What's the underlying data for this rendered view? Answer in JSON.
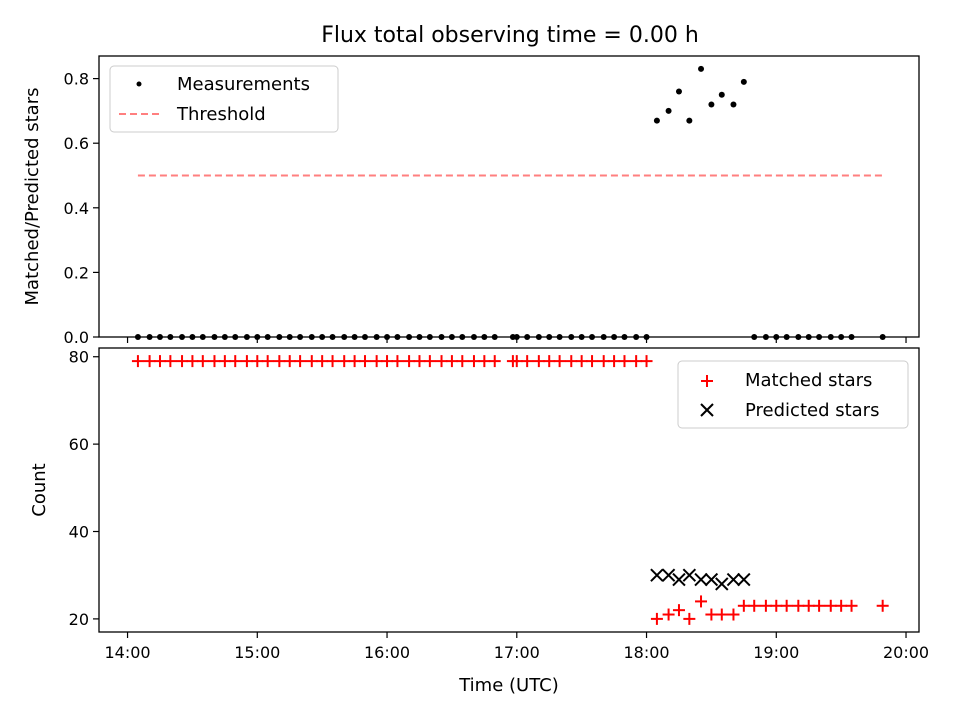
{
  "title": "Flux total observing time = 0.00 h",
  "chart_data": [
    {
      "type": "scatter",
      "ylabel": "Matched/Predicted stars",
      "xlabel": "",
      "xlim": [
        13.78,
        20.1
      ],
      "ylim": [
        0,
        0.87
      ],
      "yticks": [
        0.0,
        0.2,
        0.4,
        0.6,
        0.8
      ],
      "ytick_labels": [
        "0.0",
        "0.2",
        "0.4",
        "0.6",
        "0.8"
      ],
      "grid": false,
      "legend_position": "upper-left",
      "series": [
        {
          "name": "Measurements",
          "kind": "points",
          "color": "#000000",
          "x": [
            14.08,
            14.17,
            14.25,
            14.33,
            14.42,
            14.5,
            14.58,
            14.67,
            14.75,
            14.83,
            14.92,
            15.0,
            15.08,
            15.17,
            15.25,
            15.33,
            15.42,
            15.5,
            15.58,
            15.67,
            15.75,
            15.83,
            15.92,
            16.0,
            16.08,
            16.17,
            16.25,
            16.33,
            16.42,
            16.5,
            16.58,
            16.67,
            16.75,
            16.83,
            16.97,
            17.0,
            17.08,
            17.17,
            17.25,
            17.33,
            17.42,
            17.5,
            17.58,
            17.67,
            17.75,
            17.83,
            17.92,
            18.0,
            18.08,
            18.17,
            18.25,
            18.33,
            18.42,
            18.5,
            18.58,
            18.67,
            18.75,
            18.83,
            18.92,
            19.0,
            19.08,
            19.17,
            19.25,
            19.33,
            19.42,
            19.5,
            19.58,
            19.82
          ],
          "y": [
            0,
            0,
            0,
            0,
            0,
            0,
            0,
            0,
            0,
            0,
            0,
            0,
            0,
            0,
            0,
            0,
            0,
            0,
            0,
            0,
            0,
            0,
            0,
            0,
            0,
            0,
            0,
            0,
            0,
            0,
            0,
            0,
            0,
            0,
            0,
            0,
            0,
            0,
            0,
            0,
            0,
            0,
            0,
            0,
            0,
            0,
            0,
            0,
            0.67,
            0.7,
            0.76,
            0.67,
            0.83,
            0.72,
            0.75,
            0.72,
            0.79,
            0,
            0,
            0,
            0,
            0,
            0,
            0,
            0,
            0,
            0,
            0
          ]
        },
        {
          "name": "Threshold",
          "kind": "dashed-line",
          "color": "#ff7f7f",
          "x": [
            14.08,
            19.82
          ],
          "y": [
            0.5,
            0.5
          ]
        }
      ]
    },
    {
      "type": "scatter",
      "ylabel": "Count",
      "xlabel": "Time (UTC)",
      "xlim": [
        13.78,
        20.1
      ],
      "ylim": [
        17,
        82
      ],
      "yticks": [
        20,
        40,
        60,
        80
      ],
      "ytick_labels": [
        "20",
        "40",
        "60",
        "80"
      ],
      "xticks": [
        14,
        15,
        16,
        17,
        18,
        19,
        20
      ],
      "xtick_labels": [
        "14:00",
        "15:00",
        "16:00",
        "17:00",
        "18:00",
        "19:00",
        "20:00"
      ],
      "grid": false,
      "legend_position": "upper-right",
      "series": [
        {
          "name": "Matched stars",
          "kind": "plus",
          "color": "#ff0000",
          "x": [
            14.08,
            14.17,
            14.25,
            14.33,
            14.42,
            14.5,
            14.58,
            14.67,
            14.75,
            14.83,
            14.92,
            15.0,
            15.08,
            15.17,
            15.25,
            15.33,
            15.42,
            15.5,
            15.58,
            15.67,
            15.75,
            15.83,
            15.92,
            16.0,
            16.08,
            16.17,
            16.25,
            16.33,
            16.42,
            16.5,
            16.58,
            16.67,
            16.75,
            16.83,
            16.97,
            17.0,
            17.08,
            17.17,
            17.25,
            17.33,
            17.42,
            17.5,
            17.58,
            17.67,
            17.75,
            17.83,
            17.92,
            18.0,
            18.08,
            18.17,
            18.25,
            18.33,
            18.42,
            18.5,
            18.58,
            18.67,
            18.75,
            18.83,
            18.92,
            19.0,
            19.08,
            19.17,
            19.25,
            19.33,
            19.42,
            19.5,
            19.58,
            19.82
          ],
          "y": [
            79,
            79,
            79,
            79,
            79,
            79,
            79,
            79,
            79,
            79,
            79,
            79,
            79,
            79,
            79,
            79,
            79,
            79,
            79,
            79,
            79,
            79,
            79,
            79,
            79,
            79,
            79,
            79,
            79,
            79,
            79,
            79,
            79,
            79,
            79,
            79,
            79,
            79,
            79,
            79,
            79,
            79,
            79,
            79,
            79,
            79,
            79,
            79,
            20,
            21,
            22,
            20,
            24,
            21,
            21,
            21,
            23,
            23,
            23,
            23,
            23,
            23,
            23,
            23,
            23,
            23,
            23,
            23
          ]
        },
        {
          "name": "Predicted stars",
          "kind": "cross",
          "color": "#000000",
          "x": [
            18.08,
            18.17,
            18.25,
            18.33,
            18.42,
            18.5,
            18.58,
            18.67,
            18.75
          ],
          "y": [
            30,
            30,
            29,
            30,
            29,
            29,
            28,
            29,
            29
          ]
        }
      ]
    }
  ]
}
